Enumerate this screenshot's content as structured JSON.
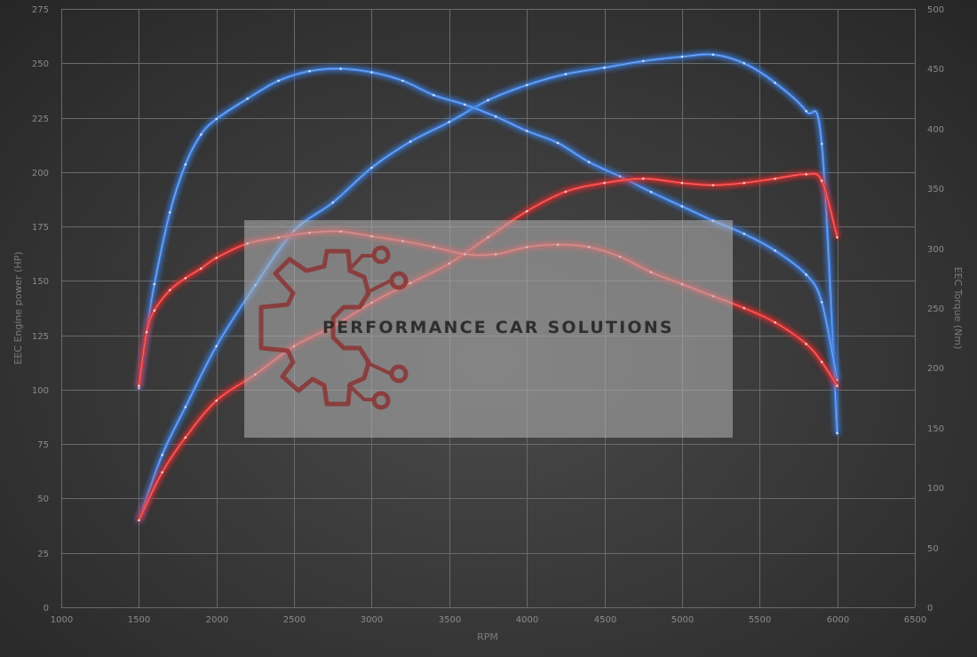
{
  "chart_data": {
    "type": "line",
    "xlabel": "RPM",
    "ylabel": "EEC Engine power (HP)",
    "y2label": "EEC Torque (Nm)",
    "xlim": [
      1000,
      6500
    ],
    "x_ticks": [
      1000,
      1500,
      2000,
      2500,
      3000,
      3500,
      4000,
      4500,
      5000,
      5500,
      6000,
      6500
    ],
    "ylim": [
      0,
      275
    ],
    "y_ticks": [
      0,
      25,
      50,
      75,
      100,
      125,
      150,
      175,
      200,
      225,
      250,
      275
    ],
    "y2lim": [
      0,
      500
    ],
    "y2_ticks": [
      0,
      50,
      100,
      150,
      200,
      250,
      300,
      350,
      400,
      450,
      500
    ],
    "grid": true,
    "series": [
      {
        "axis": "left",
        "color": "#3d7fe0",
        "x": [
          1500,
          1650,
          1800,
          2000,
          2250,
          2500,
          2750,
          3000,
          3250,
          3500,
          3750,
          4000,
          4250,
          4500,
          4750,
          5000,
          5200,
          5400,
          5600,
          5800,
          5900,
          6000
        ],
        "values": [
          40,
          70,
          92,
          120,
          148,
          173,
          186,
          202,
          214,
          223,
          233,
          240,
          245,
          248,
          251,
          253,
          254,
          250,
          241,
          228,
          213,
          80
        ]
      },
      {
        "axis": "right",
        "color": "#3d7fe0",
        "x": [
          1500,
          1550,
          1600,
          1700,
          1800,
          1900,
          2000,
          2200,
          2400,
          2600,
          2800,
          3000,
          3200,
          3400,
          3600,
          3800,
          4000,
          4200,
          4400,
          4600,
          4800,
          5000,
          5200,
          5400,
          5600,
          5800,
          5900,
          6000
        ],
        "values": [
          183,
          230,
          270,
          330,
          370,
          395,
          408,
          425,
          440,
          448,
          450,
          447,
          440,
          428,
          420,
          410,
          398,
          388,
          372,
          360,
          347,
          335,
          323,
          312,
          298,
          278,
          255,
          190
        ]
      },
      {
        "axis": "left",
        "color": "#e03030",
        "x": [
          1500,
          1650,
          1800,
          2000,
          2250,
          2500,
          2750,
          3000,
          3250,
          3500,
          3750,
          4000,
          4250,
          4500,
          4750,
          5000,
          5200,
          5400,
          5600,
          5800,
          5900,
          6000
        ],
        "values": [
          40,
          62,
          78,
          95,
          107,
          120,
          129,
          140,
          149,
          158,
          170,
          182,
          191,
          195,
          197,
          195,
          194,
          195,
          197,
          199,
          196,
          170
        ]
      },
      {
        "axis": "right",
        "color": "#e03030",
        "x": [
          1500,
          1550,
          1600,
          1700,
          1800,
          1900,
          2000,
          2200,
          2400,
          2600,
          2800,
          3000,
          3200,
          3400,
          3600,
          3800,
          4000,
          4200,
          4400,
          4600,
          4800,
          5000,
          5200,
          5400,
          5600,
          5800,
          5900,
          6000
        ],
        "values": [
          185,
          230,
          248,
          265,
          275,
          283,
          292,
          304,
          309,
          313,
          314,
          310,
          306,
          301,
          295,
          295,
          301,
          303,
          301,
          293,
          280,
          270,
          260,
          250,
          238,
          220,
          205,
          185
        ]
      }
    ]
  },
  "watermark": {
    "brand_text": "PERFORMANCE CAR SOLUTIONS",
    "logo_icon": "gear-circuit-logo-icon",
    "logo_color": "#8c3333"
  }
}
